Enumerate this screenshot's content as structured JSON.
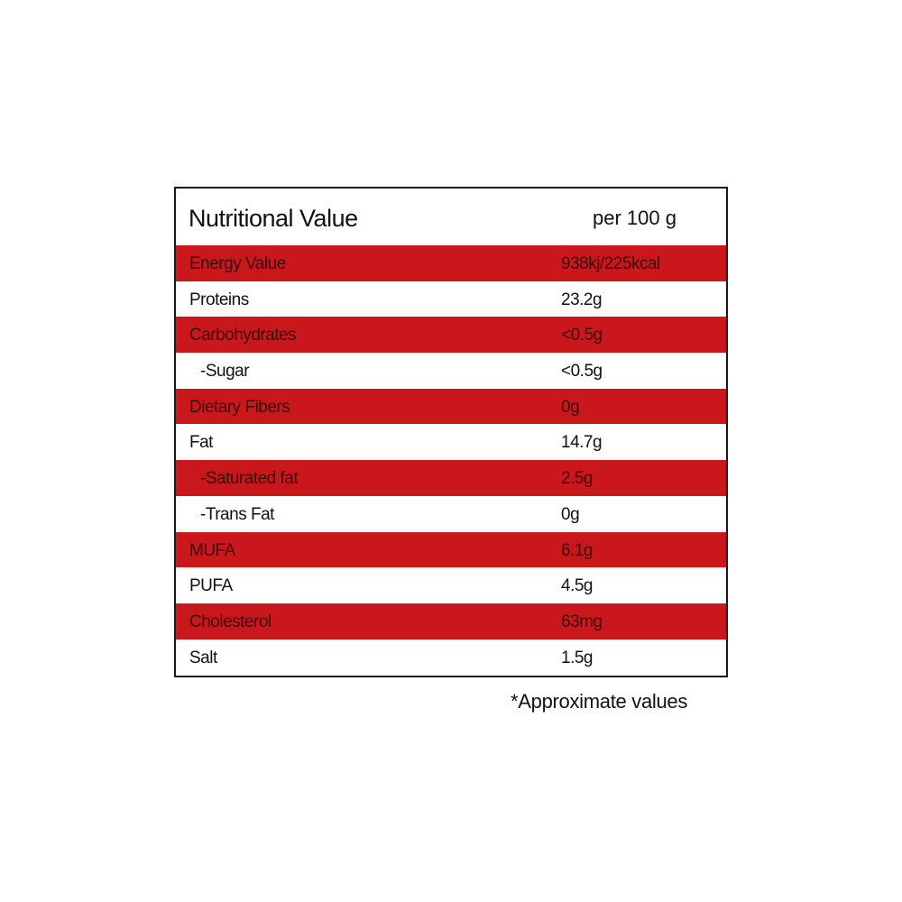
{
  "header": {
    "title": "Nutritional Value",
    "per": "per 100 g"
  },
  "rows": [
    {
      "label": "Energy Value",
      "value": "938kj/225kcal",
      "highlight": true,
      "indent": false
    },
    {
      "label": "Proteins",
      "value": "23.2g",
      "highlight": false,
      "indent": false
    },
    {
      "label": "Carbohydrates",
      "value": "<0.5g",
      "highlight": true,
      "indent": false
    },
    {
      "label": "-Sugar",
      "value": "<0.5g",
      "highlight": false,
      "indent": true
    },
    {
      "label": "Dietary Fibers",
      "value": "0g",
      "highlight": true,
      "indent": false
    },
    {
      "label": "Fat",
      "value": "14.7g",
      "highlight": false,
      "indent": false
    },
    {
      "label": "-Saturated fat",
      "value": "2.5g",
      "highlight": true,
      "indent": true
    },
    {
      "label": "-Trans Fat",
      "value": "0g",
      "highlight": false,
      "indent": true
    },
    {
      "label": "MUFA",
      "value": "6.1g",
      "highlight": true,
      "indent": false
    },
    {
      "label": "PUFA",
      "value": "4.5g",
      "highlight": false,
      "indent": false
    },
    {
      "label": "Cholesterol",
      "value": "63mg",
      "highlight": true,
      "indent": false
    },
    {
      "label": "Salt",
      "value": "1.5g",
      "highlight": false,
      "indent": false
    }
  ],
  "footnote": "*Approximate values",
  "colors": {
    "highlight": "#c9171c",
    "border": "#1a1a1a"
  }
}
